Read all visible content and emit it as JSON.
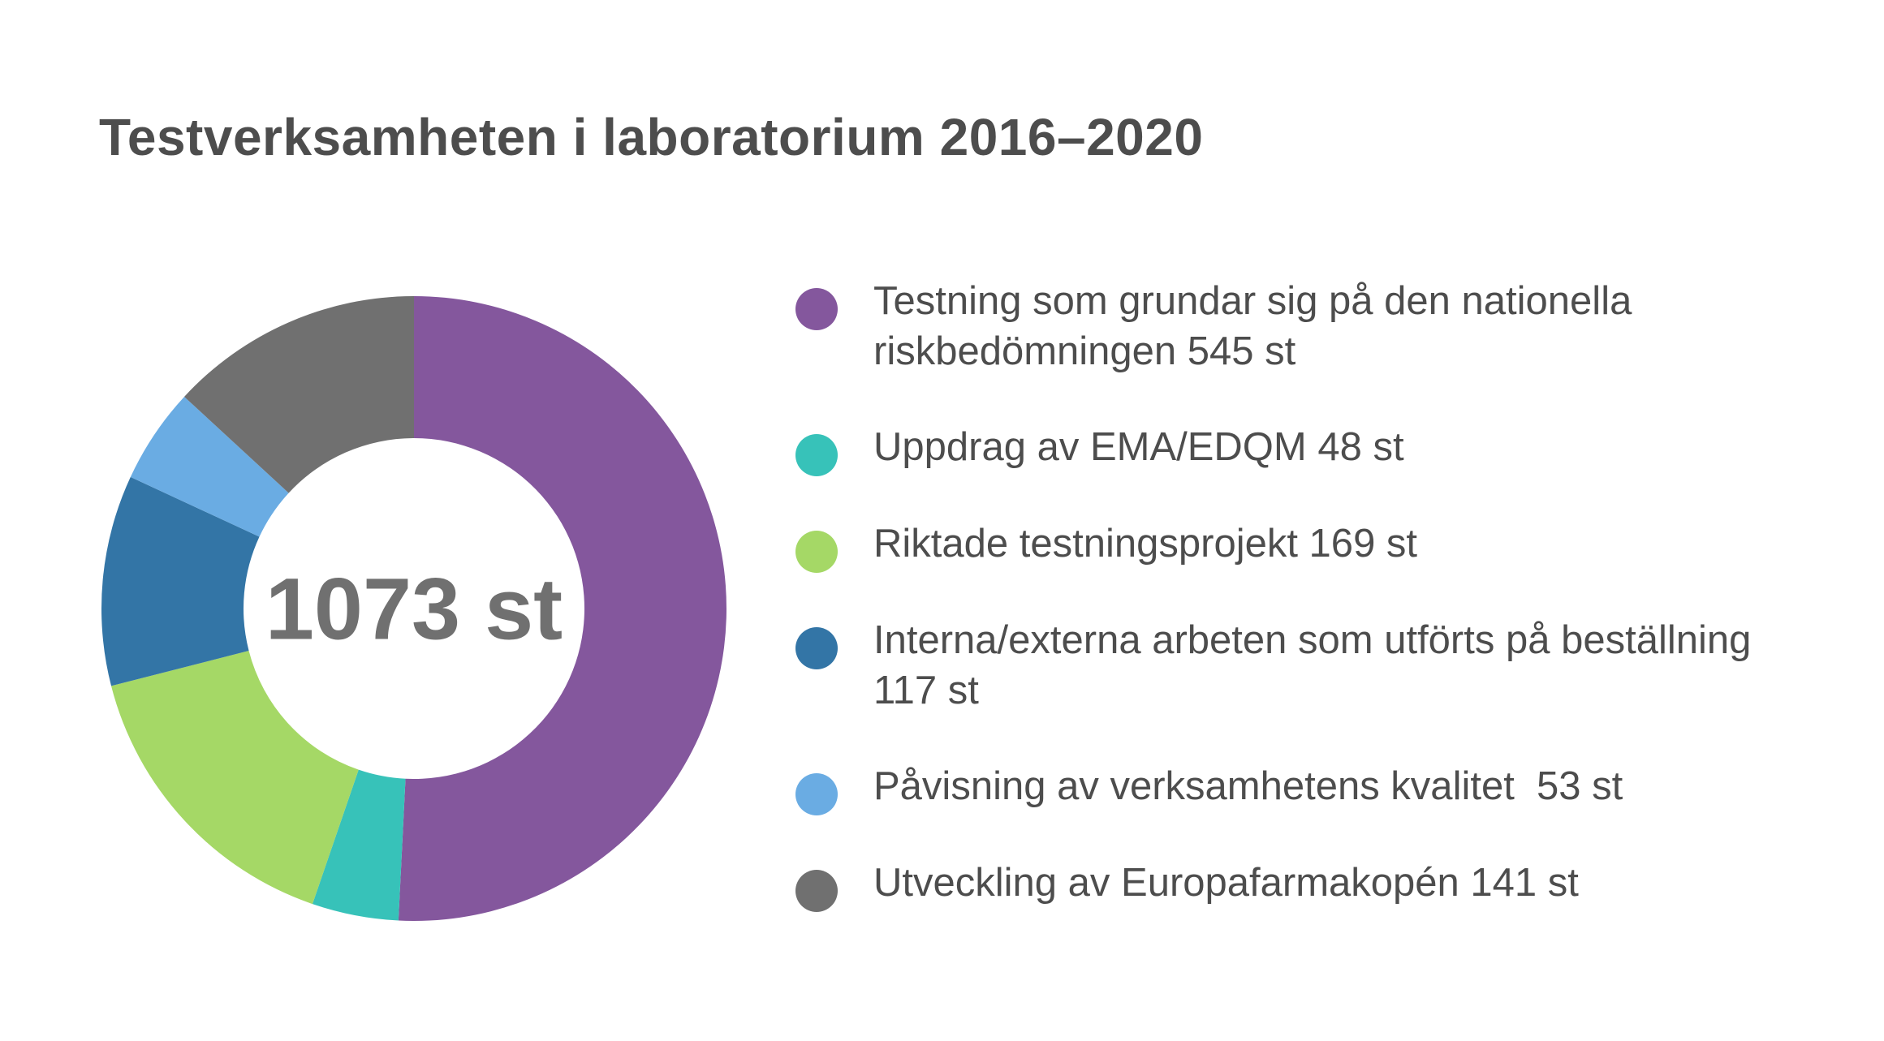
{
  "chart_data": {
    "type": "pie",
    "variant": "donut",
    "title": "Testverksamheten i laboratorium 2016–2020",
    "center_label": "1073 st",
    "total": 1073,
    "unit": "st",
    "slices": [
      {
        "label": "Testning som grundar sig på den nationella riskbedömningen 545 st",
        "value": 545,
        "color": "#84579d"
      },
      {
        "label": "Uppdrag av EMA/EDQM 48 st",
        "value": 48,
        "color": "#37c2b9"
      },
      {
        "label": "Riktade testningsprojekt 169 st",
        "value": 169,
        "color": "#a5d866"
      },
      {
        "label": "Interna/externa arbeten som utförts på beställning 117 st",
        "value": 117,
        "color": "#3375a6"
      },
      {
        "label": "Påvisning av verksamhetens kvalitet  53 st",
        "value": 53,
        "color": "#6aace3"
      },
      {
        "label": "Utveckling av Europafarmakopén 141 st",
        "value": 141,
        "color": "#707070"
      }
    ],
    "legend_position": "right"
  },
  "legend": {
    "items": [
      {
        "line1": "Testning som grundar sig på den nationella",
        "line2": "riskbedömningen 545 st",
        "color": "#84579d"
      },
      {
        "line1": "Uppdrag av EMA/EDQM 48 st",
        "line2": "",
        "color": "#37c2b9"
      },
      {
        "line1": "Riktade testningsprojekt 169 st",
        "line2": "",
        "color": "#a5d866"
      },
      {
        "line1": "Interna/externa arbeten som utförts på beställning",
        "line2": "117 st",
        "color": "#3375a6"
      },
      {
        "line1": "Påvisning av verksamhetens kvalitet  53 st",
        "line2": "",
        "color": "#6aace3"
      },
      {
        "line1": "Utveckling av Europafarmakopén 141 st",
        "line2": "",
        "color": "#707070"
      }
    ]
  }
}
